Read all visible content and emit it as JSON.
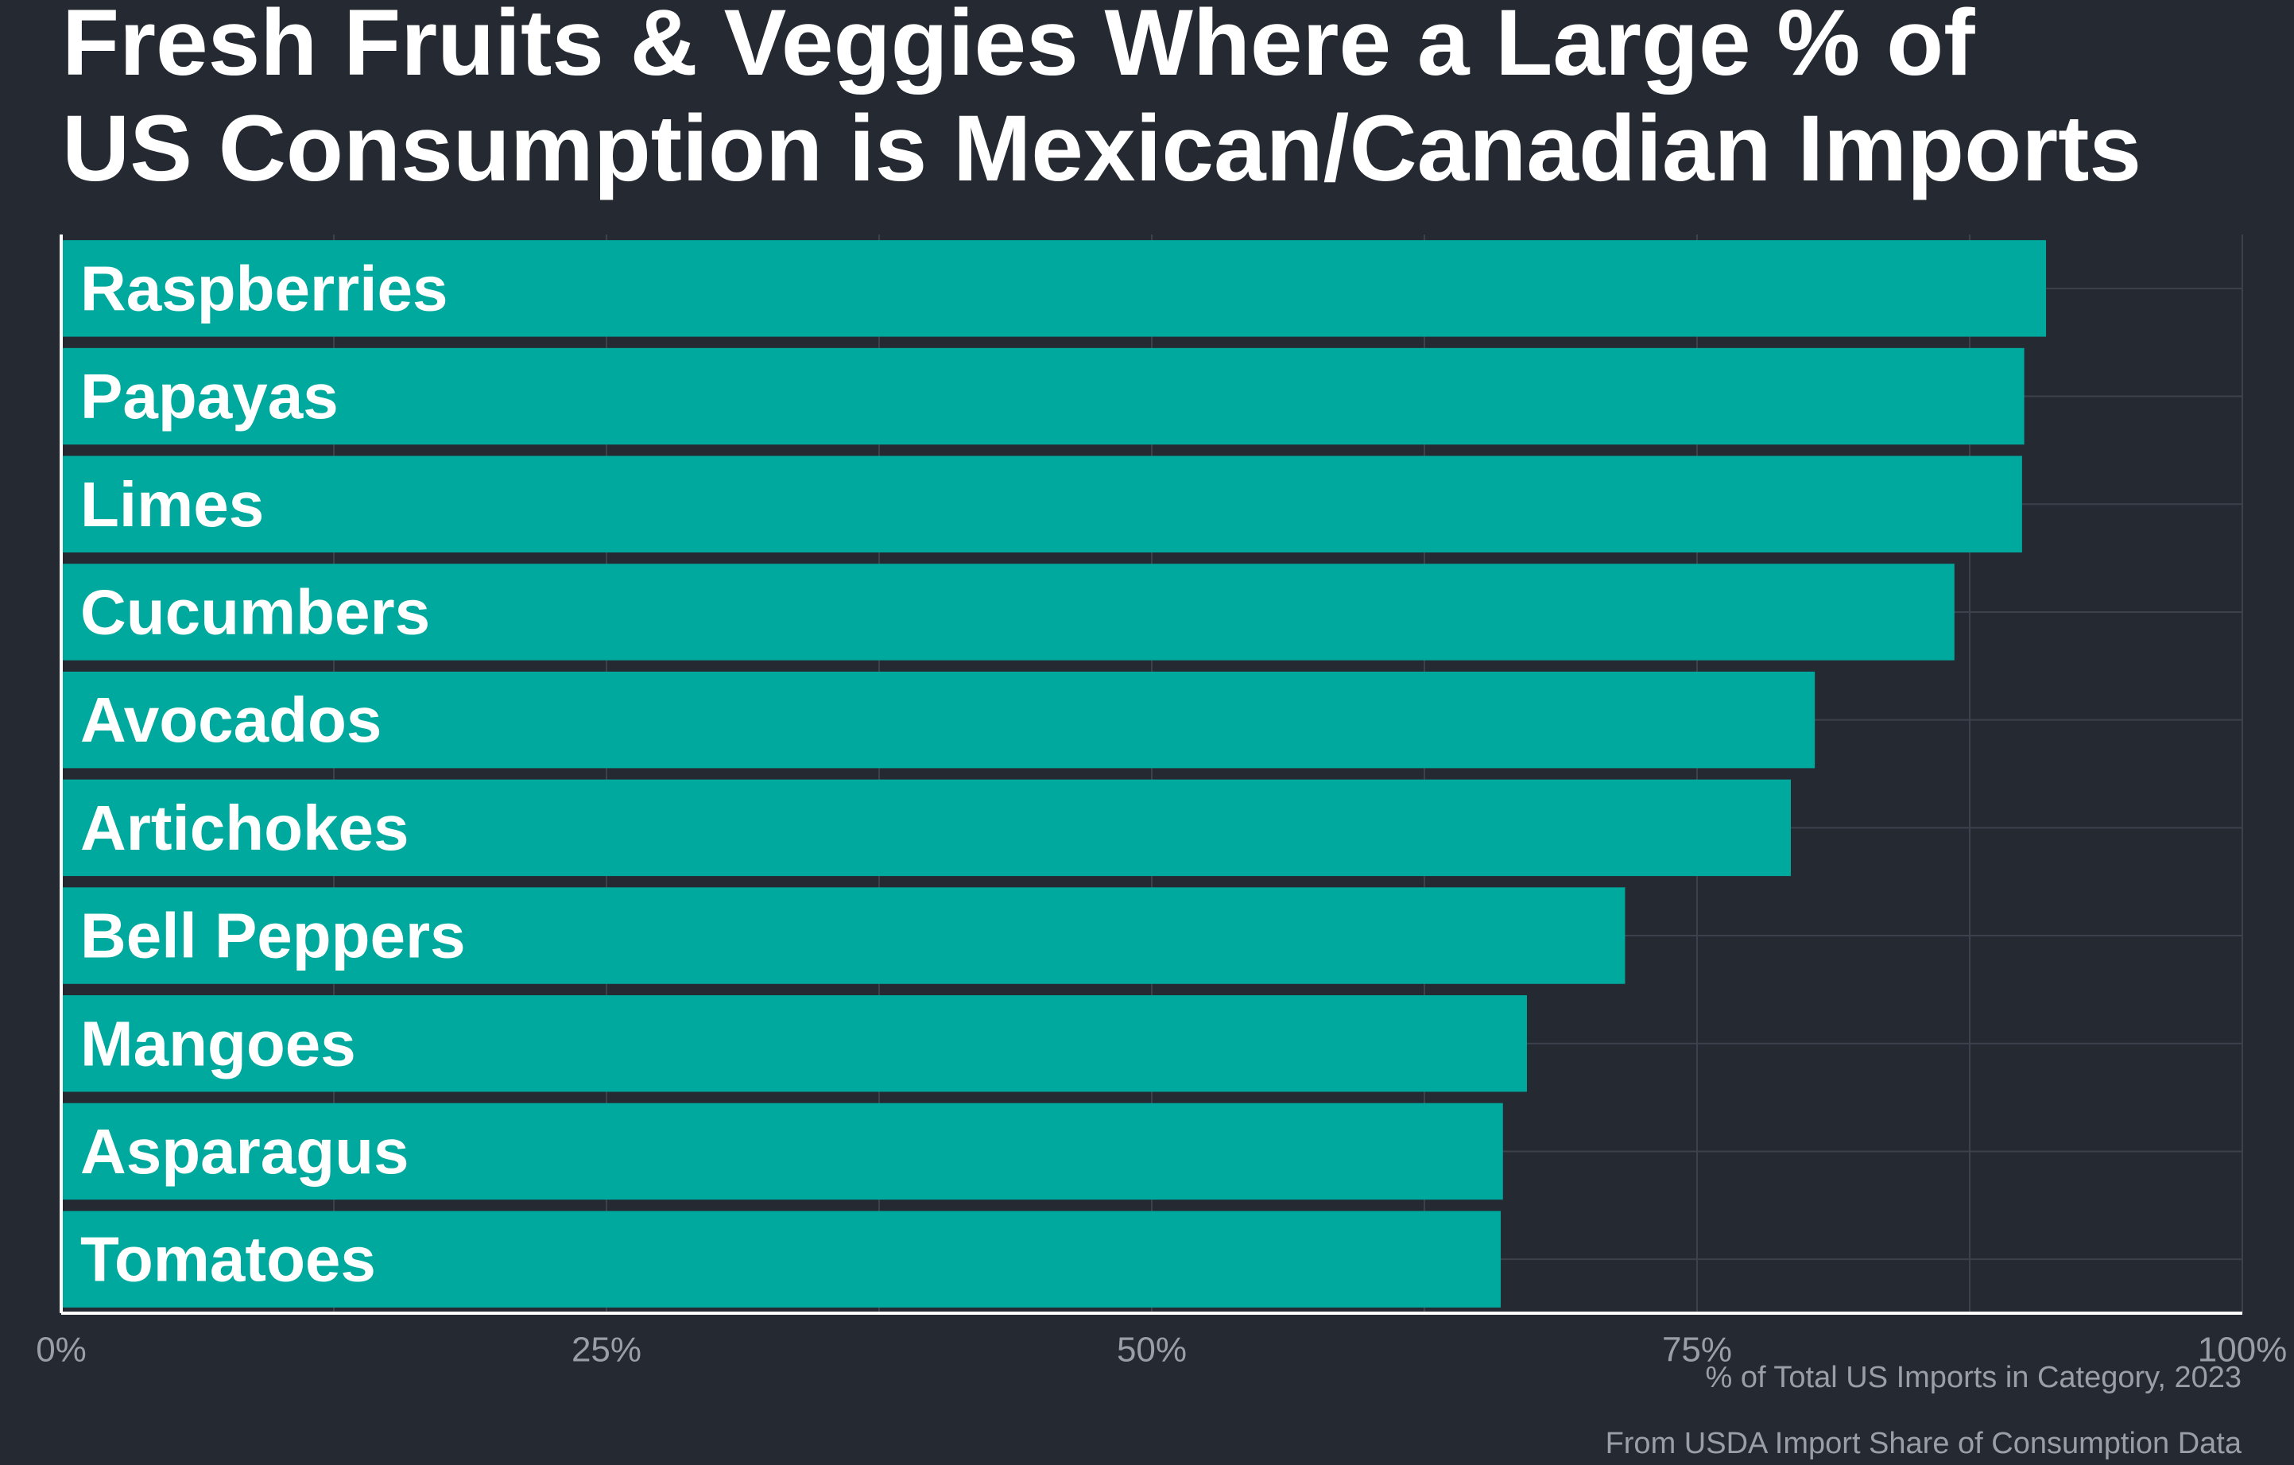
{
  "chart_data": {
    "type": "bar",
    "orientation": "horizontal",
    "title_lines": [
      "Fresh Fruits & Veggies Where a Large % of",
      "US Consumption is Mexican/Canadian Imports"
    ],
    "categories": [
      "Raspberries",
      "Papayas",
      "Limes",
      "Cucumbers",
      "Avocados",
      "Artichokes",
      "Bell Peppers",
      "Mangoes",
      "Asparagus",
      "Tomatoes"
    ],
    "values": [
      91,
      90,
      89.9,
      86.8,
      80.4,
      79.3,
      71.7,
      67.2,
      66.1,
      66
    ],
    "value_unit": "%",
    "xlabel": "% of Total US Imports in Category, 2023",
    "ylabel": "",
    "xlim": [
      0,
      100
    ],
    "xticks": [
      0,
      25,
      50,
      75,
      100
    ],
    "xtick_labels": [
      "0%",
      "25%",
      "50%",
      "75%",
      "100%"
    ],
    "caption": "From USDA Import Share of Consumption Data",
    "grid": true,
    "legend": "none",
    "colors": {
      "background": "#252932",
      "bar": "#00a99d",
      "bar_label": "#ffffff",
      "grid": "#3c414b",
      "axis": "#ffffff",
      "tick_label": "#9a9ea6"
    }
  }
}
